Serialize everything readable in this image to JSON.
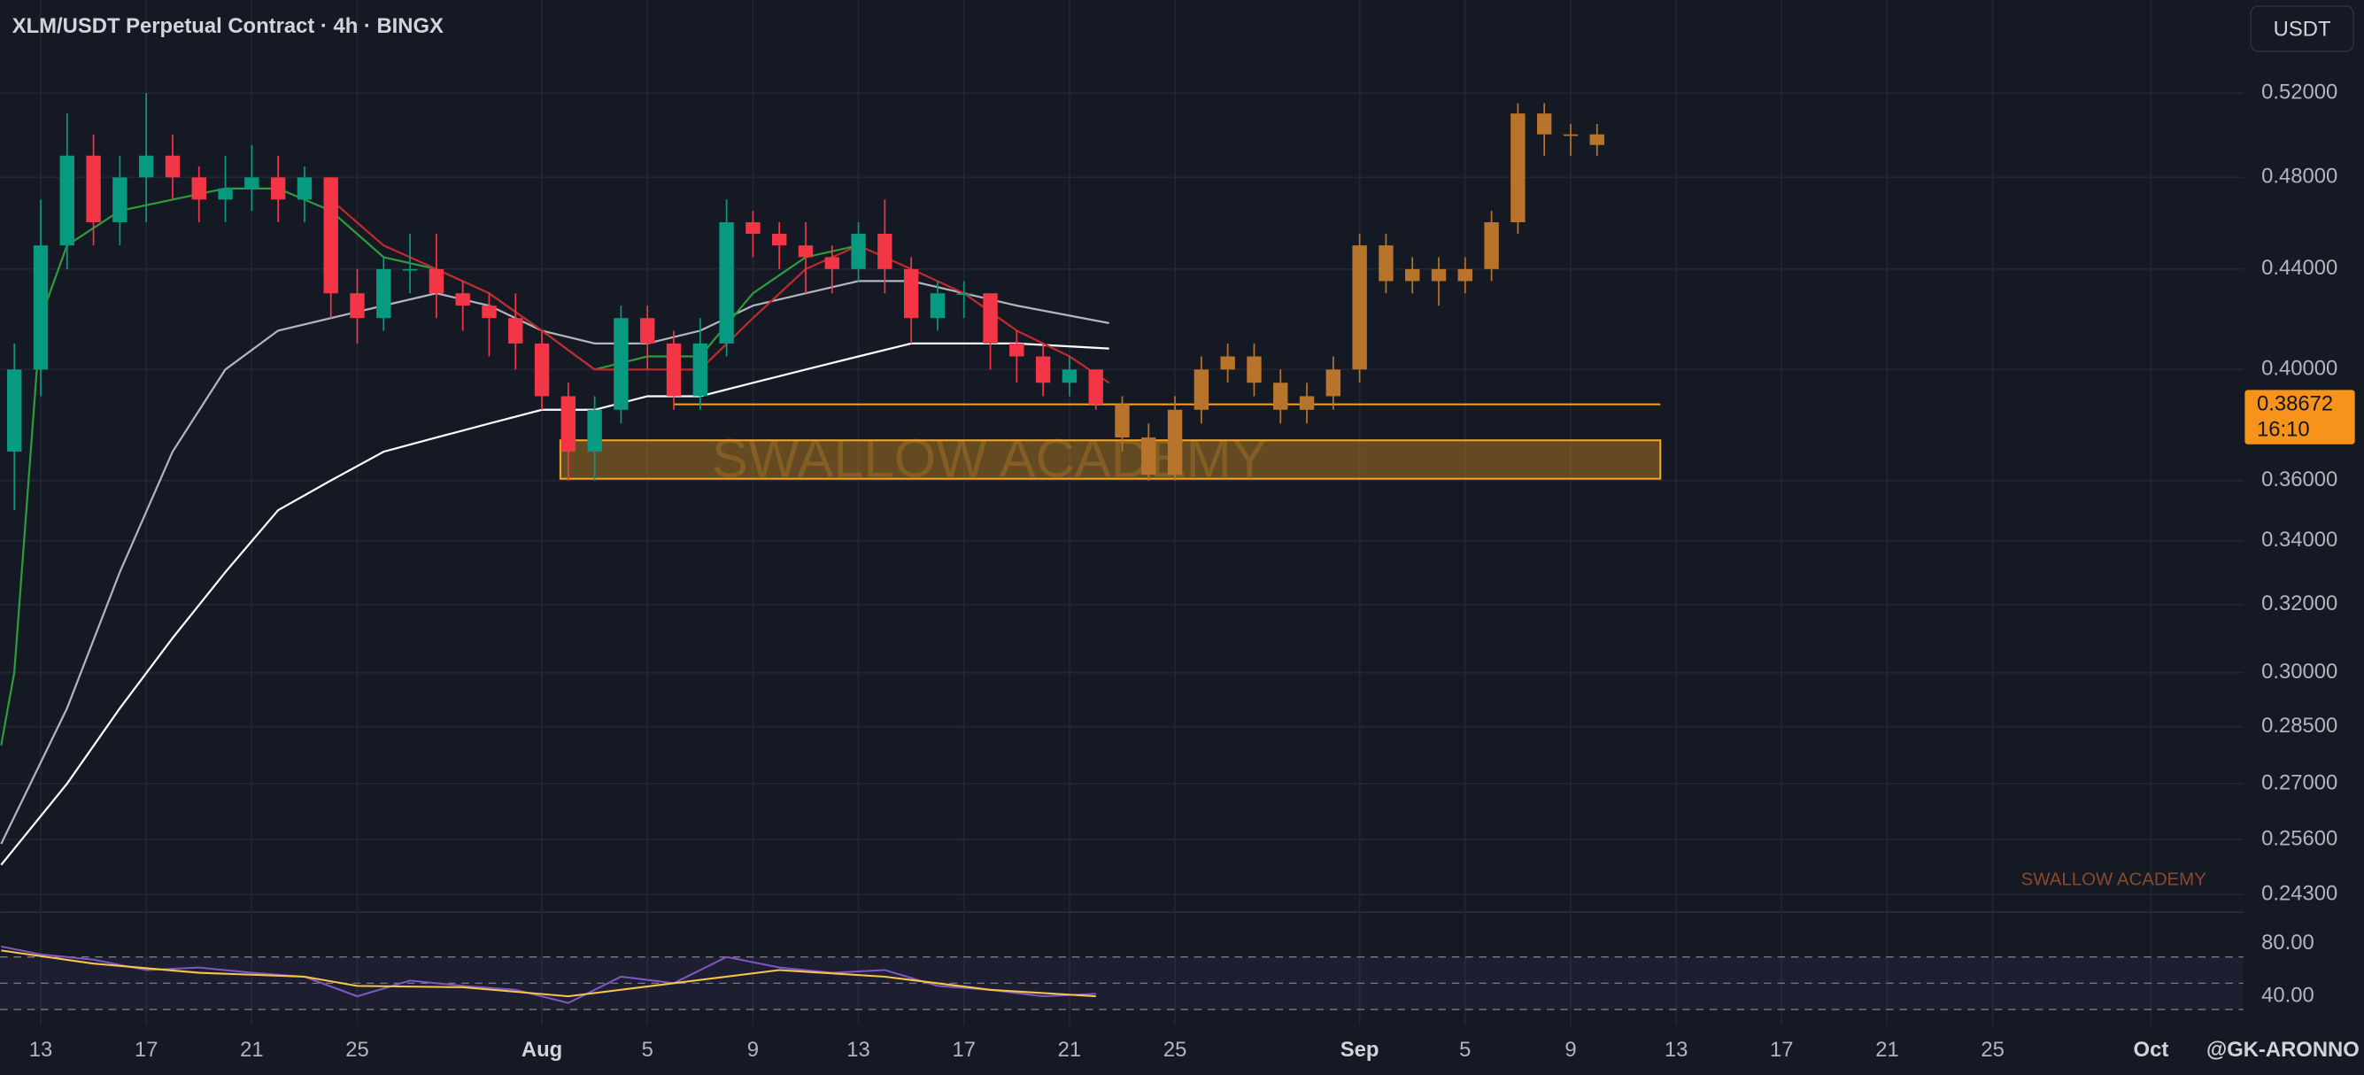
{
  "chart_data": [
    {
      "type": "candlestick",
      "title": "XLM/USDT Perpetual Contract · 4h · BINGX",
      "unit": "USDT",
      "author": "@GK-ARONNO",
      "watermark": "SWALLOW ACADEMY",
      "log": true,
      "grid": true,
      "xlim": [
        11.46,
        96.5
      ],
      "xticks": [
        13,
        17,
        21,
        25,
        {
          "value": 32,
          "label": "Aug"
        },
        {
          "value": 36,
          "label": "5"
        },
        {
          "value": 40,
          "label": "9"
        },
        {
          "value": 44,
          "label": "13"
        },
        {
          "value": 48,
          "label": "17"
        },
        {
          "value": 52,
          "label": "21"
        },
        {
          "value": 56,
          "label": "25"
        },
        {
          "value": 63,
          "label": "Sep"
        },
        {
          "value": 67,
          "label": "5"
        },
        {
          "value": 71,
          "label": "9"
        },
        {
          "value": 75,
          "label": "13"
        },
        {
          "value": 79,
          "label": "17"
        },
        {
          "value": 83,
          "label": "21"
        },
        {
          "value": 87,
          "label": "25"
        },
        {
          "value": 93,
          "label": "Oct"
        }
      ],
      "ylim": [
        0.239,
        0.568
      ],
      "yticks": [
        {
          "value": 0.52,
          "label": "0.52000"
        },
        {
          "value": 0.48,
          "label": "0.48000"
        },
        {
          "value": 0.44,
          "label": "0.44000"
        },
        {
          "value": 0.4,
          "label": "0.40000"
        },
        {
          "value": 0.36,
          "label": "0.36000"
        },
        {
          "value": 0.34,
          "label": "0.34000"
        },
        {
          "value": 0.32,
          "label": "0.32000"
        },
        {
          "value": 0.3,
          "label": "0.30000"
        },
        {
          "value": 0.285,
          "label": "0.28500"
        },
        {
          "value": 0.27,
          "label": "0.27000"
        },
        {
          "value": 0.256,
          "label": "0.25600"
        },
        {
          "value": 0.243,
          "label": "0.24300"
        }
      ],
      "last_price": 0.38672,
      "countdown": "16:10",
      "candles": {
        "up_color": "#089981",
        "down_color": "#f23645",
        "x": [
          12,
          13,
          14,
          15,
          16,
          17,
          18,
          19,
          20,
          21,
          22,
          23,
          24,
          25,
          26,
          27,
          28,
          29,
          30,
          31,
          32,
          33,
          34,
          35,
          36,
          37,
          38,
          39,
          40,
          41,
          42,
          43,
          44,
          45,
          46,
          47,
          48,
          49,
          50,
          51,
          52,
          53
        ],
        "open": [
          0.37,
          0.4,
          0.45,
          0.49,
          0.46,
          0.48,
          0.49,
          0.48,
          0.47,
          0.475,
          0.48,
          0.47,
          0.48,
          0.43,
          0.42,
          0.44,
          0.44,
          0.43,
          0.425,
          0.42,
          0.41,
          0.39,
          0.37,
          0.385,
          0.42,
          0.41,
          0.39,
          0.41,
          0.46,
          0.455,
          0.45,
          0.445,
          0.44,
          0.455,
          0.44,
          0.42,
          0.43,
          0.43,
          0.41,
          0.405,
          0.395,
          0.4
        ],
        "high": [
          0.41,
          0.47,
          0.51,
          0.5,
          0.49,
          0.52,
          0.5,
          0.485,
          0.49,
          0.495,
          0.49,
          0.485,
          0.48,
          0.44,
          0.445,
          0.455,
          0.455,
          0.435,
          0.43,
          0.43,
          0.415,
          0.395,
          0.39,
          0.425,
          0.425,
          0.415,
          0.42,
          0.47,
          0.465,
          0.46,
          0.46,
          0.45,
          0.46,
          0.47,
          0.445,
          0.435,
          0.435,
          0.43,
          0.415,
          0.41,
          0.405,
          0.4
        ],
        "low": [
          0.35,
          0.39,
          0.44,
          0.45,
          0.45,
          0.46,
          0.47,
          0.46,
          0.46,
          0.465,
          0.46,
          0.46,
          0.42,
          0.41,
          0.415,
          0.43,
          0.42,
          0.415,
          0.405,
          0.4,
          0.385,
          0.36,
          0.36,
          0.38,
          0.4,
          0.385,
          0.385,
          0.405,
          0.445,
          0.44,
          0.43,
          0.43,
          0.435,
          0.43,
          0.41,
          0.415,
          0.42,
          0.4,
          0.395,
          0.39,
          0.39,
          0.385
        ],
        "close": [
          0.4,
          0.45,
          0.49,
          0.46,
          0.48,
          0.49,
          0.48,
          0.47,
          0.475,
          0.48,
          0.47,
          0.48,
          0.43,
          0.42,
          0.44,
          0.44,
          0.43,
          0.425,
          0.42,
          0.41,
          0.39,
          0.37,
          0.385,
          0.42,
          0.41,
          0.39,
          0.41,
          0.46,
          0.455,
          0.45,
          0.445,
          0.44,
          0.455,
          0.44,
          0.42,
          0.43,
          0.43,
          0.41,
          0.405,
          0.395,
          0.4,
          0.387
        ]
      },
      "projection": {
        "color": "#b8742a",
        "x": [
          54,
          55,
          56,
          57,
          58,
          59,
          60,
          61,
          62,
          63,
          64,
          65,
          66,
          67,
          68,
          69,
          70,
          71,
          72
        ],
        "open": [
          0.387,
          0.375,
          0.362,
          0.385,
          0.4,
          0.405,
          0.395,
          0.385,
          0.39,
          0.4,
          0.45,
          0.435,
          0.44,
          0.435,
          0.44,
          0.46,
          0.51,
          0.5,
          0.5
        ],
        "high": [
          0.39,
          0.38,
          0.39,
          0.405,
          0.41,
          0.41,
          0.4,
          0.395,
          0.405,
          0.455,
          0.455,
          0.445,
          0.445,
          0.445,
          0.465,
          0.515,
          0.515,
          0.505,
          0.505
        ],
        "low": [
          0.37,
          0.36,
          0.36,
          0.38,
          0.395,
          0.39,
          0.38,
          0.38,
          0.385,
          0.395,
          0.43,
          0.43,
          0.425,
          0.43,
          0.435,
          0.455,
          0.49,
          0.49,
          0.49
        ],
        "close": [
          0.375,
          0.362,
          0.385,
          0.4,
          0.405,
          0.395,
          0.385,
          0.39,
          0.4,
          0.45,
          0.435,
          0.44,
          0.435,
          0.44,
          0.46,
          0.51,
          0.5,
          0.5,
          0.495
        ]
      },
      "lines": [
        {
          "color": "#ffffff",
          "x": [
            11.5,
            14,
            16,
            18,
            20,
            22,
            24,
            26,
            28,
            30,
            32,
            34,
            36,
            38,
            40,
            42,
            44,
            46,
            48,
            50,
            53.5
          ],
          "values": [
            0.25,
            0.27,
            0.29,
            0.31,
            0.33,
            0.35,
            0.36,
            0.37,
            0.375,
            0.38,
            0.385,
            0.385,
            0.39,
            0.39,
            0.395,
            0.4,
            0.405,
            0.41,
            0.41,
            0.41,
            0.408
          ]
        },
        {
          "color": "#b2b5be",
          "x": [
            11.5,
            14,
            16,
            18,
            20,
            22,
            24,
            26,
            28,
            30,
            32,
            34,
            36,
            38,
            40,
            42,
            44,
            46,
            48,
            50,
            53.5
          ],
          "values": [
            0.255,
            0.29,
            0.33,
            0.37,
            0.4,
            0.415,
            0.42,
            0.425,
            0.43,
            0.425,
            0.415,
            0.41,
            0.41,
            0.415,
            0.425,
            0.43,
            0.435,
            0.435,
            0.43,
            0.425,
            0.418
          ]
        },
        {
          "color": "#2e9c3a",
          "x": [
            11.5,
            12,
            13,
            14,
            16,
            18,
            20,
            22,
            24,
            26,
            28,
            30,
            32,
            34,
            36,
            38,
            40,
            42,
            44
          ],
          "values": [
            0.28,
            0.3,
            0.42,
            0.45,
            0.465,
            0.47,
            0.475,
            0.475,
            0.465,
            0.445,
            0.44,
            0.43,
            0.415,
            0.4,
            0.405,
            0.405,
            0.43,
            0.445,
            0.45
          ]
        },
        {
          "color": "#c2282f",
          "x": [
            24,
            26,
            28,
            30,
            32,
            34,
            36,
            38,
            40,
            42,
            44,
            46,
            48,
            50,
            52,
            53.5
          ],
          "values": [
            0.47,
            0.45,
            0.44,
            0.43,
            0.415,
            0.4,
            0.4,
            0.4,
            0.42,
            0.44,
            0.45,
            0.44,
            0.43,
            0.415,
            0.405,
            0.395
          ]
        }
      ],
      "level": {
        "value": 0.387,
        "x": [
          37,
          74.4
        ],
        "color": "#f5a623"
      },
      "zone": {
        "low": 0.3606,
        "high": 0.374,
        "x": [
          32.7,
          74.4
        ],
        "color": "#f5a623"
      }
    },
    {
      "type": "line",
      "ylim": [
        18,
        103
      ],
      "yticks": [
        {
          "value": 80,
          "label": "80.00"
        },
        {
          "value": 40,
          "label": "40.00"
        }
      ],
      "levels": [
        70,
        50,
        30
      ],
      "series": [
        {
          "color": "#7e57c2",
          "x": [
            11.5,
            13,
            15,
            17,
            19,
            21,
            23,
            25,
            27,
            29,
            31,
            33,
            35,
            37,
            39,
            41,
            43,
            45,
            47,
            49,
            51,
            53
          ],
          "values": [
            78,
            72,
            68,
            60,
            62,
            58,
            55,
            40,
            52,
            48,
            45,
            35,
            55,
            50,
            70,
            62,
            58,
            60,
            48,
            45,
            40,
            42
          ]
        },
        {
          "color": "#f7c548",
          "x": [
            11.5,
            15,
            19,
            23,
            25,
            29,
            33,
            37,
            41,
            45,
            49,
            53
          ],
          "values": [
            75,
            65,
            58,
            55,
            48,
            47,
            40,
            50,
            60,
            55,
            45,
            40
          ]
        }
      ]
    }
  ]
}
